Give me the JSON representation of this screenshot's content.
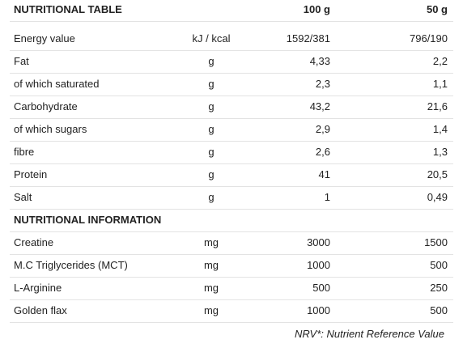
{
  "table": {
    "header": [
      "NUTRITIONAL TABLE",
      "100 g",
      "50 g"
    ],
    "rows": [
      [
        "Energy value",
        "kJ / kcal",
        "1592/381",
        "796/190"
      ],
      [
        "Fat",
        "g",
        "4,33",
        "2,2"
      ],
      [
        "of which saturated",
        "g",
        "2,3",
        "1,1"
      ],
      [
        "Carbohydrate",
        "g",
        "43,2",
        "21,6"
      ],
      [
        "of which sugars",
        "g",
        "2,9",
        "1,4"
      ],
      [
        "fibre",
        "g",
        "2,6",
        "1,3"
      ],
      [
        "Protein",
        "g",
        "41",
        "20,5"
      ],
      [
        "Salt",
        "g",
        "1",
        "0,49"
      ]
    ],
    "section": "NUTRITIONAL INFORMATION",
    "rows2": [
      [
        "Creatine",
        "mg",
        "3000",
        "1500"
      ],
      [
        "M.C Triglycerides (MCT)",
        "mg",
        "1000",
        "500"
      ],
      [
        "L-Arginine",
        "mg",
        "500",
        "250"
      ],
      [
        "Golden flax",
        "mg",
        "1000",
        "500"
      ]
    ],
    "footnote": "NRV*: Nutrient Reference Value"
  }
}
